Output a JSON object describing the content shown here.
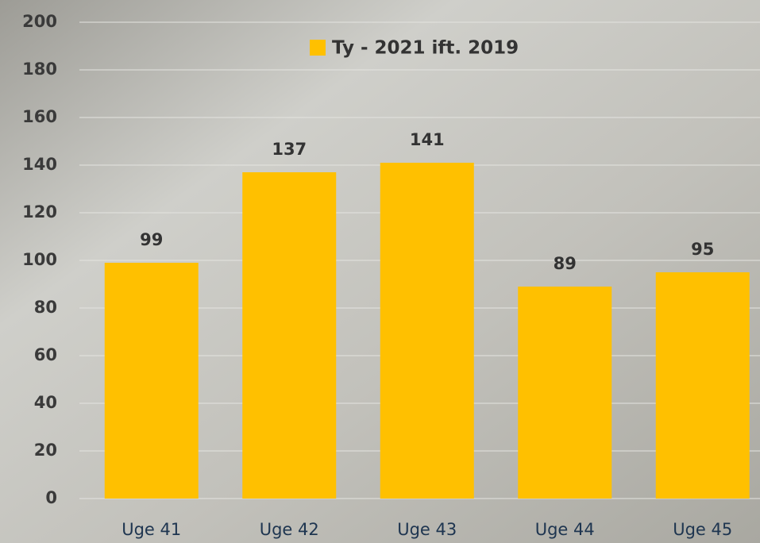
{
  "chart_data": {
    "type": "bar",
    "categories": [
      "Uge 41",
      "Uge 42",
      "Uge 43",
      "Uge 44",
      "Uge 45"
    ],
    "series": [
      {
        "name": "Ty - 2021 ift. 2019",
        "color": "#ffc000",
        "values": [
          99,
          137,
          141,
          89,
          95
        ]
      }
    ],
    "ylim": [
      0,
      200
    ],
    "yticks": [
      0,
      20,
      40,
      60,
      80,
      100,
      120,
      140,
      160,
      180,
      200
    ],
    "grid": true,
    "data_labels": true
  }
}
